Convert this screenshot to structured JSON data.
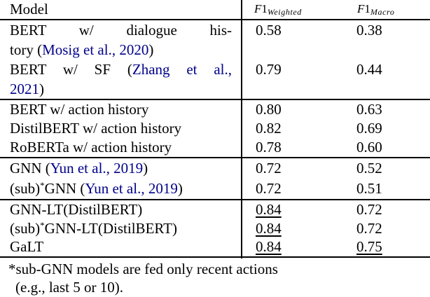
{
  "colors": {
    "text": "#000000",
    "citation": "#00008B",
    "rule": "#000000",
    "background": "#ffffff"
  },
  "header": {
    "model_label": "Model",
    "metrics": [
      {
        "f": "F",
        "one": "1",
        "sub": "Weighted"
      },
      {
        "f": "F",
        "one": "1",
        "sub": "Macro"
      }
    ]
  },
  "groups": [
    {
      "rows": [
        {
          "lines": [
            {
              "justify": true,
              "segments": [
                {
                  "t": "BERT w/ dialogue his-"
                }
              ]
            },
            {
              "justify": false,
              "segments": [
                {
                  "t": "tory ("
                },
                {
                  "t": "Mosig et al., 2020",
                  "cite": true
                },
                {
                  "t": ")"
                }
              ]
            }
          ],
          "values": [
            {
              "v": "0.58"
            },
            {
              "v": "0.38"
            }
          ]
        },
        {
          "lines": [
            {
              "justify": true,
              "segments": [
                {
                  "t": "BERT w/ SF ("
                },
                {
                  "t": "Zhang et al.,",
                  "cite": true
                }
              ]
            },
            {
              "justify": false,
              "segments": [
                {
                  "t": "2021",
                  "cite": true
                },
                {
                  "t": ")"
                }
              ]
            }
          ],
          "values": [
            {
              "v": "0.79"
            },
            {
              "v": "0.44"
            }
          ]
        }
      ]
    },
    {
      "rows": [
        {
          "lines": [
            {
              "justify": false,
              "segments": [
                {
                  "t": "BERT w/ action history"
                }
              ]
            }
          ],
          "values": [
            {
              "v": "0.80"
            },
            {
              "v": "0.63"
            }
          ]
        },
        {
          "lines": [
            {
              "justify": false,
              "segments": [
                {
                  "t": "DistilBERT w/ action history"
                }
              ]
            }
          ],
          "values": [
            {
              "v": "0.82"
            },
            {
              "v": "0.69"
            }
          ]
        },
        {
          "lines": [
            {
              "justify": false,
              "segments": [
                {
                  "t": "RoBERTa w/ action history"
                }
              ]
            }
          ],
          "values": [
            {
              "v": "0.78"
            },
            {
              "v": "0.60"
            }
          ]
        }
      ]
    },
    {
      "rows": [
        {
          "lines": [
            {
              "justify": false,
              "segments": [
                {
                  "t": "GNN ("
                },
                {
                  "t": "Yun et al., 2019",
                  "cite": true
                },
                {
                  "t": ")"
                }
              ]
            }
          ],
          "values": [
            {
              "v": "0.72"
            },
            {
              "v": "0.52"
            }
          ]
        },
        {
          "lines": [
            {
              "justify": false,
              "segments": [
                {
                  "t": "(sub)"
                },
                {
                  "t": "*",
                  "sup": true
                },
                {
                  "t": "GNN ("
                },
                {
                  "t": "Yun et al., 2019",
                  "cite": true
                },
                {
                  "t": ")"
                }
              ]
            }
          ],
          "values": [
            {
              "v": "0.72"
            },
            {
              "v": "0.51"
            }
          ]
        }
      ]
    },
    {
      "rows": [
        {
          "lines": [
            {
              "justify": false,
              "segments": [
                {
                  "t": "GNN-LT(DistilBERT)"
                }
              ]
            }
          ],
          "values": [
            {
              "v": "0.84",
              "u": true
            },
            {
              "v": "0.72"
            }
          ]
        },
        {
          "lines": [
            {
              "justify": false,
              "segments": [
                {
                  "t": "(sub)"
                },
                {
                  "t": "*",
                  "sup": true
                },
                {
                  "t": "GNN-LT(DistilBERT)"
                }
              ]
            }
          ],
          "values": [
            {
              "v": "0.84",
              "u": true
            },
            {
              "v": "0.72"
            }
          ]
        },
        {
          "lines": [
            {
              "justify": false,
              "segments": [
                {
                  "t": "GaLT"
                }
              ]
            }
          ],
          "values": [
            {
              "v": "0.84",
              "u": true
            },
            {
              "v": "0.75",
              "u": true
            }
          ]
        }
      ]
    }
  ],
  "footnote": {
    "line1": "*sub-GNN models are fed only recent actions",
    "line2": "(e.g., last 5 or 10)."
  }
}
